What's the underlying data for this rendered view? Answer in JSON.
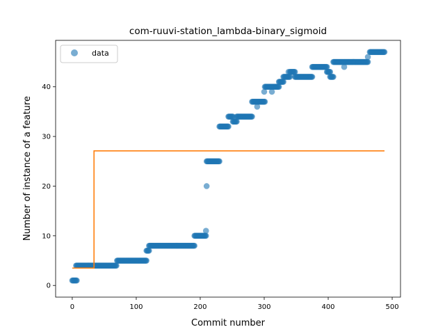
{
  "chart_data": {
    "type": "scatter",
    "title": "com-ruuvi-station_lambda-binary_sigmoid",
    "xlabel": "Commit number",
    "ylabel": "Number of instance of a feature",
    "xlim": [
      -26,
      513
    ],
    "ylim": [
      -2.35,
      49.35
    ],
    "xticks": [
      0,
      100,
      200,
      300,
      400,
      500
    ],
    "yticks": [
      0,
      10,
      20,
      30,
      40
    ],
    "grid": false,
    "legend": {
      "position": "top-left",
      "entries": [
        "data"
      ]
    },
    "colors": {
      "data": "#1f77b4",
      "fit": "#ff7f0e"
    },
    "series": [
      {
        "name": "data",
        "kind": "scatter",
        "segments": [
          {
            "x_start": 0,
            "x_end": 7,
            "y": 1
          },
          {
            "x_start": 6,
            "x_end": 69,
            "y": 4
          },
          {
            "x_start": 70,
            "x_end": 116,
            "y": 5
          },
          {
            "x_start": 116,
            "x_end": 120,
            "y": 7
          },
          {
            "x_start": 120,
            "x_end": 191,
            "y": 8
          },
          {
            "x_start": 191,
            "x_end": 209,
            "y": 10
          },
          {
            "x_start": 210,
            "x_end": 230,
            "y": 25
          },
          {
            "x_start": 230,
            "x_end": 244,
            "y": 32
          },
          {
            "x_start": 244,
            "x_end": 251,
            "y": 34
          },
          {
            "x_start": 251,
            "x_end": 257,
            "y": 33
          },
          {
            "x_start": 257,
            "x_end": 281,
            "y": 34
          },
          {
            "x_start": 281,
            "x_end": 301,
            "y": 37
          },
          {
            "x_start": 301,
            "x_end": 323,
            "y": 40
          },
          {
            "x_start": 323,
            "x_end": 330,
            "y": 41
          },
          {
            "x_start": 330,
            "x_end": 340,
            "y": 42
          },
          {
            "x_start": 340,
            "x_end": 348,
            "y": 43
          },
          {
            "x_start": 348,
            "x_end": 375,
            "y": 42
          },
          {
            "x_start": 375,
            "x_end": 398,
            "y": 44
          },
          {
            "x_start": 398,
            "x_end": 403,
            "y": 43
          },
          {
            "x_start": 403,
            "x_end": 408,
            "y": 42
          },
          {
            "x_start": 408,
            "x_end": 462,
            "y": 45
          },
          {
            "x_start": 465,
            "x_end": 488,
            "y": 47
          }
        ],
        "points": [
          {
            "x": 209,
            "y": 11
          },
          {
            "x": 210,
            "y": 20
          },
          {
            "x": 289,
            "y": 36
          },
          {
            "x": 300,
            "y": 39
          },
          {
            "x": 312,
            "y": 39
          },
          {
            "x": 338,
            "y": 43
          },
          {
            "x": 425,
            "y": 44
          },
          {
            "x": 462,
            "y": 46
          }
        ]
      },
      {
        "name": "",
        "kind": "line",
        "x": [
          0,
          34,
          34,
          488
        ],
        "y": [
          3.5,
          3.5,
          27.1,
          27.1
        ]
      }
    ]
  }
}
